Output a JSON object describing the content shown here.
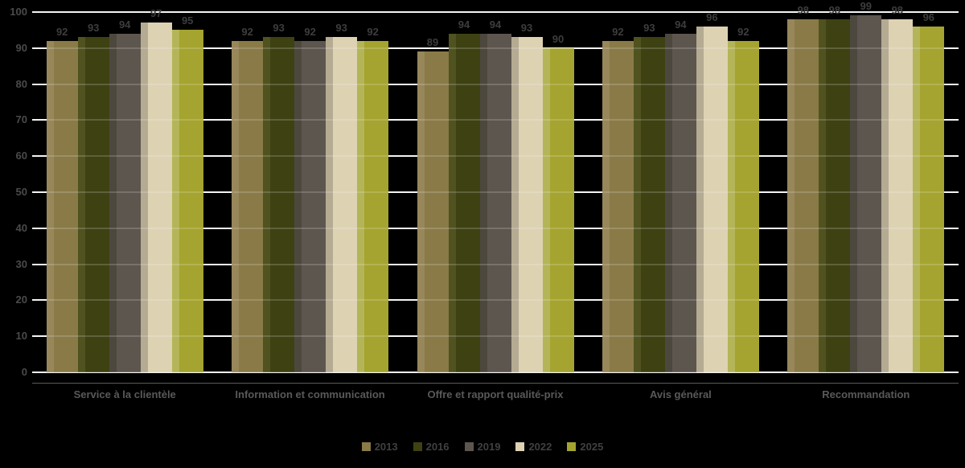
{
  "chart_data": {
    "type": "bar",
    "title": "",
    "xlabel": "",
    "ylabel": "",
    "categories": [
      "Service à la clientèle",
      "Information et communication",
      "Offre et rapport qualité-prix",
      "Avis général",
      "Recommandation"
    ],
    "series": [
      {
        "name": "2013",
        "color": "#8a7a47",
        "edge_color": "#97875a",
        "values": [
          92,
          92,
          89,
          92,
          98
        ]
      },
      {
        "name": "2016",
        "color": "#3e4112",
        "edge_color": "#50531f",
        "values": [
          93,
          93,
          94,
          93,
          98
        ]
      },
      {
        "name": "2019",
        "color": "#5d564f",
        "edge_color": "#4d483e",
        "values": [
          94,
          92,
          94,
          94,
          99
        ]
      },
      {
        "name": "2022",
        "color": "#ddd2b2",
        "edge_color": "#b5ab93",
        "values": [
          97,
          93,
          93,
          96,
          98
        ]
      },
      {
        "name": "2025",
        "color": "#a5a430",
        "edge_color": "#b4b558",
        "values": [
          95,
          92,
          90,
          92,
          96
        ]
      }
    ],
    "ylim": [
      0,
      100
    ],
    "yticks": [
      0,
      10,
      20,
      30,
      40,
      50,
      60,
      70,
      80,
      90,
      100
    ],
    "grid": true,
    "legend_position": "bottom"
  },
  "colors": {
    "background": "#000000",
    "gridline": "#f2f2f2",
    "axis_line": "#5a5a5a",
    "tick_label": "#4a4a4a",
    "data_label": "#3d3d3d",
    "category_label": "#595959",
    "legend_label": "#404040"
  }
}
